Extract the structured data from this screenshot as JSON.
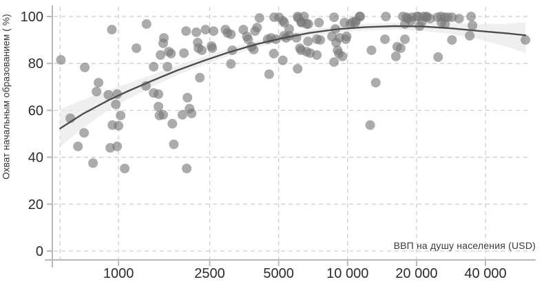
{
  "figure": {
    "x_axis_title": "ВВП на душу населения (USD)",
    "y_axis_title": "Охват начальным образованием ( %)"
  },
  "chart_data": {
    "type": "scatter",
    "title": "",
    "xlabel": "ВВП на душу населения (USD)",
    "ylabel": "Охват начальным образованием ( %)",
    "x_scale": "log",
    "xlim": [
      514,
      66300
    ],
    "ylim": [
      -3.8,
      104.7
    ],
    "grid": "dashed",
    "legend_position": "none",
    "x_ticks": [
      {
        "value": 1000,
        "label": "1000"
      },
      {
        "value": 2500,
        "label": "2500"
      },
      {
        "value": 5000,
        "label": "5000"
      },
      {
        "value": 10000,
        "label": "10 000"
      },
      {
        "value": 20000,
        "label": "20 000"
      },
      {
        "value": 40000,
        "label": "40 000"
      }
    ],
    "x_minor_gridlines": [
      556
    ],
    "y_ticks": [
      {
        "value": 0,
        "label": "0"
      },
      {
        "value": 20,
        "label": "20"
      },
      {
        "value": 40,
        "label": "40"
      },
      {
        "value": 60,
        "label": "60"
      },
      {
        "value": 80,
        "label": "80"
      },
      {
        "value": 100,
        "label": "100"
      }
    ],
    "points": [
      [
        560,
        81.5
      ],
      [
        616,
        56.6
      ],
      [
        665,
        44.6
      ],
      [
        707,
        50.4
      ],
      [
        712,
        78.3
      ],
      [
        774,
        37.5
      ],
      [
        801,
        68
      ],
      [
        818,
        71.8
      ],
      [
        903,
        66.6
      ],
      [
        920,
        44
      ],
      [
        935,
        94.4
      ],
      [
        940,
        53.7
      ],
      [
        973,
        62.5
      ],
      [
        986,
        66.9
      ],
      [
        986,
        44.6
      ],
      [
        1000,
        53.4
      ],
      [
        1021,
        57.8
      ],
      [
        1064,
        35.2
      ],
      [
        1197,
        86.5
      ],
      [
        1318,
        70.4
      ],
      [
        1325,
        96.8
      ],
      [
        1423,
        78.6
      ],
      [
        1423,
        67.4
      ],
      [
        1494,
        66.9
      ],
      [
        1494,
        61.6
      ],
      [
        1509,
        57.8
      ],
      [
        1525,
        83.6
      ],
      [
        1567,
        88.6
      ],
      [
        1567,
        58.1
      ],
      [
        1578,
        90.9
      ],
      [
        1634,
        78.6
      ],
      [
        1657,
        85
      ],
      [
        1695,
        84.2
      ],
      [
        1718,
        54.3
      ],
      [
        1743,
        45.5
      ],
      [
        1901,
        58.1
      ],
      [
        1930,
        84.4
      ],
      [
        1971,
        93.8
      ],
      [
        1984,
        35.2
      ],
      [
        1999,
        65.4
      ],
      [
        2041,
        60.7
      ],
      [
        2085,
        58.7
      ],
      [
        2186,
        93.3
      ],
      [
        2217,
        88.9
      ],
      [
        2232,
        86.5
      ],
      [
        2264,
        73.9
      ],
      [
        2310,
        85.6
      ],
      [
        2398,
        94.4
      ],
      [
        2546,
        87.4
      ],
      [
        2564,
        86.5
      ],
      [
        2599,
        93.8
      ],
      [
        2929,
        94.4
      ],
      [
        2990,
        93
      ],
      [
        3095,
        92.4
      ],
      [
        3095,
        79.8
      ],
      [
        3140,
        85.6
      ],
      [
        3506,
        94.4
      ],
      [
        3631,
        91.5
      ],
      [
        3681,
        90.3
      ],
      [
        3810,
        87.1
      ],
      [
        3893,
        85.9
      ],
      [
        3944,
        93.8
      ],
      [
        4028,
        95.3
      ],
      [
        4125,
        99.4
      ],
      [
        4481,
        90.3
      ],
      [
        4544,
        75.4
      ],
      [
        4637,
        90.9
      ],
      [
        4763,
        84.2
      ],
      [
        4780,
        99.7
      ],
      [
        4862,
        90.3
      ],
      [
        5020,
        99.7
      ],
      [
        5213,
        81.3
      ],
      [
        5220,
        98.2
      ],
      [
        5281,
        91.8
      ],
      [
        5290,
        97.4
      ],
      [
        5392,
        90.9
      ],
      [
        5560,
        94.7
      ],
      [
        5560,
        91.8
      ],
      [
        5980,
        90.9
      ],
      [
        6050,
        100
      ],
      [
        6050,
        77.7
      ],
      [
        6080,
        99.4
      ],
      [
        6190,
        86.5
      ],
      [
        6270,
        85.6
      ],
      [
        6280,
        97.4
      ],
      [
        6290,
        97.7
      ],
      [
        6460,
        100
      ],
      [
        6620,
        96.8
      ],
      [
        6620,
        85
      ],
      [
        6720,
        89.4
      ],
      [
        6740,
        96.8
      ],
      [
        6860,
        84.4
      ],
      [
        7340,
        90.3
      ],
      [
        7340,
        83.6
      ],
      [
        7500,
        97.4
      ],
      [
        7600,
        90
      ],
      [
        8550,
        91.5
      ],
      [
        8730,
        99.7
      ],
      [
        8730,
        80.6
      ],
      [
        8850,
        94.7
      ],
      [
        8910,
        88.9
      ],
      [
        9040,
        85.6
      ],
      [
        9170,
        84.2
      ],
      [
        9230,
        90.9
      ],
      [
        9500,
        83
      ],
      [
        9690,
        97.4
      ],
      [
        9830,
        90.3
      ],
      [
        9900,
        91.5
      ],
      [
        10280,
        96.8
      ],
      [
        10520,
        97.7
      ],
      [
        10810,
        97.4
      ],
      [
        10890,
        98.2
      ],
      [
        11280,
        100
      ],
      [
        11350,
        100
      ],
      [
        12550,
        53.7
      ],
      [
        12710,
        85.6
      ],
      [
        13280,
        71.8
      ],
      [
        14560,
        90.3
      ],
      [
        14700,
        100
      ],
      [
        16250,
        83
      ],
      [
        16470,
        87.1
      ],
      [
        17060,
        86.5
      ],
      [
        17440,
        100
      ],
      [
        17800,
        90.3
      ],
      [
        17800,
        96.8
      ],
      [
        18070,
        99.7
      ],
      [
        18310,
        99.1
      ],
      [
        18940,
        98.2
      ],
      [
        19100,
        99.7
      ],
      [
        20070,
        100
      ],
      [
        20350,
        100
      ],
      [
        20630,
        95.9
      ],
      [
        21100,
        97.7
      ],
      [
        21470,
        100
      ],
      [
        22070,
        99.7
      ],
      [
        22200,
        100
      ],
      [
        22960,
        99.1
      ],
      [
        24680,
        99.7
      ],
      [
        24850,
        82.7
      ],
      [
        25560,
        100
      ],
      [
        25740,
        97.4
      ],
      [
        26460,
        99.7
      ],
      [
        26640,
        96.8
      ],
      [
        27430,
        99.7
      ],
      [
        28580,
        99.7
      ],
      [
        28580,
        90
      ],
      [
        30660,
        99.1
      ],
      [
        34130,
        91.8
      ],
      [
        34610,
        100
      ],
      [
        35090,
        96.2
      ],
      [
        59800,
        90
      ]
    ],
    "trend": {
      "name": "smoothed-fit",
      "x": [
        556,
        700,
        900,
        1100,
        1400,
        1800,
        2300,
        3000,
        4000,
        5200,
        6800,
        9000,
        12000,
        16000,
        21000,
        28000,
        38000,
        50000,
        59800
      ],
      "y": [
        52.3,
        58.5,
        64.2,
        68.2,
        72.6,
        77,
        80.8,
        84.6,
        88.2,
        90.8,
        93,
        94.6,
        95.5,
        95.9,
        95.8,
        95,
        93.8,
        92.8,
        92
      ]
    },
    "band": {
      "name": "confidence-band",
      "x": [
        556,
        700,
        900,
        1100,
        1400,
        1800,
        2300,
        3000,
        4000,
        5200,
        6800,
        9000,
        12000,
        16000,
        21000,
        28000,
        38000,
        50000,
        59800
      ],
      "upper": [
        60.5,
        64.5,
        68.5,
        71.5,
        75.2,
        79,
        82.6,
        86.2,
        89.6,
        92.2,
        94.4,
        96,
        96.9,
        97.4,
        97.5,
        97.2,
        96.8,
        96.9,
        97.5
      ],
      "lower": [
        44.5,
        52.5,
        60,
        64.8,
        70,
        75,
        79,
        83,
        86.8,
        89.4,
        91.6,
        93.2,
        94.1,
        94.4,
        94,
        92.6,
        90.2,
        87,
        84.5
      ]
    },
    "colors": {
      "background": "#ffffff",
      "point": "#787878",
      "point_opacity": 0.62,
      "trend_line": "#4d4d4d",
      "band": "#e9e9e9",
      "band_opacity": 0.75,
      "gridline": "#cbcbcb",
      "axis_line": "#b8b8b8",
      "tick_label": "#2b2b2b",
      "axis_title": "#3a3a3a"
    }
  }
}
